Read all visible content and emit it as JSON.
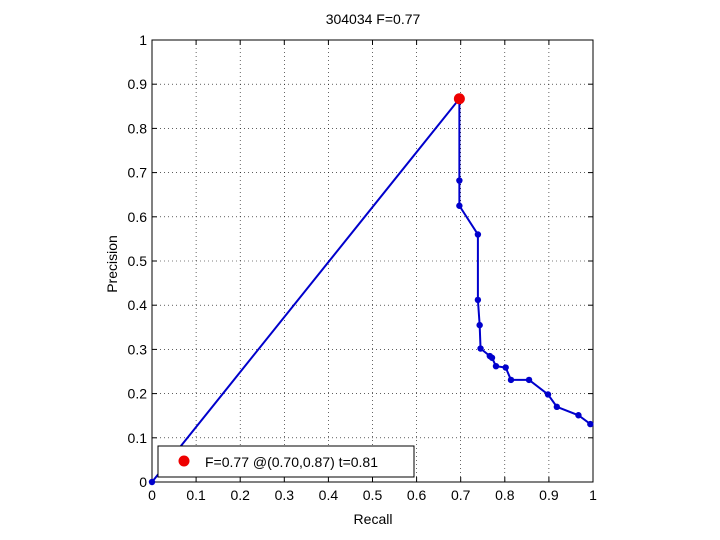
{
  "chart_data": {
    "type": "line",
    "title": "304034 F=0.77",
    "xlabel": "Recall",
    "ylabel": "Precision",
    "xlim": [
      0,
      1
    ],
    "ylim": [
      0,
      1
    ],
    "grid": true,
    "xticks": [
      "0",
      "0.1",
      "0.2",
      "0.3",
      "0.4",
      "0.5",
      "0.6",
      "0.7",
      "0.8",
      "0.9",
      "1"
    ],
    "yticks": [
      "0",
      "0.1",
      "0.2",
      "0.3",
      "0.4",
      "0.5",
      "0.6",
      "0.7",
      "0.8",
      "0.9",
      "1"
    ],
    "series": [
      {
        "color": "#0000cc",
        "points": [
          [
            0.0,
            0.0
          ],
          [
            0.697,
            0.867
          ],
          [
            0.697,
            0.682
          ],
          [
            0.697,
            0.625
          ],
          [
            0.739,
            0.56
          ],
          [
            0.739,
            0.412
          ],
          [
            0.743,
            0.355
          ],
          [
            0.745,
            0.302
          ],
          [
            0.766,
            0.285
          ],
          [
            0.771,
            0.281
          ],
          [
            0.78,
            0.262
          ],
          [
            0.802,
            0.259
          ],
          [
            0.814,
            0.231
          ],
          [
            0.855,
            0.231
          ],
          [
            0.898,
            0.198
          ],
          [
            0.918,
            0.17
          ],
          [
            0.967,
            0.151
          ],
          [
            0.994,
            0.131
          ]
        ]
      }
    ],
    "best_point": {
      "x": 0.697,
      "y": 0.867,
      "color": "#ee0000"
    },
    "legend": {
      "label": "F=0.77 @(0.70,0.87) t=0.81",
      "position": "bottom-left"
    }
  }
}
